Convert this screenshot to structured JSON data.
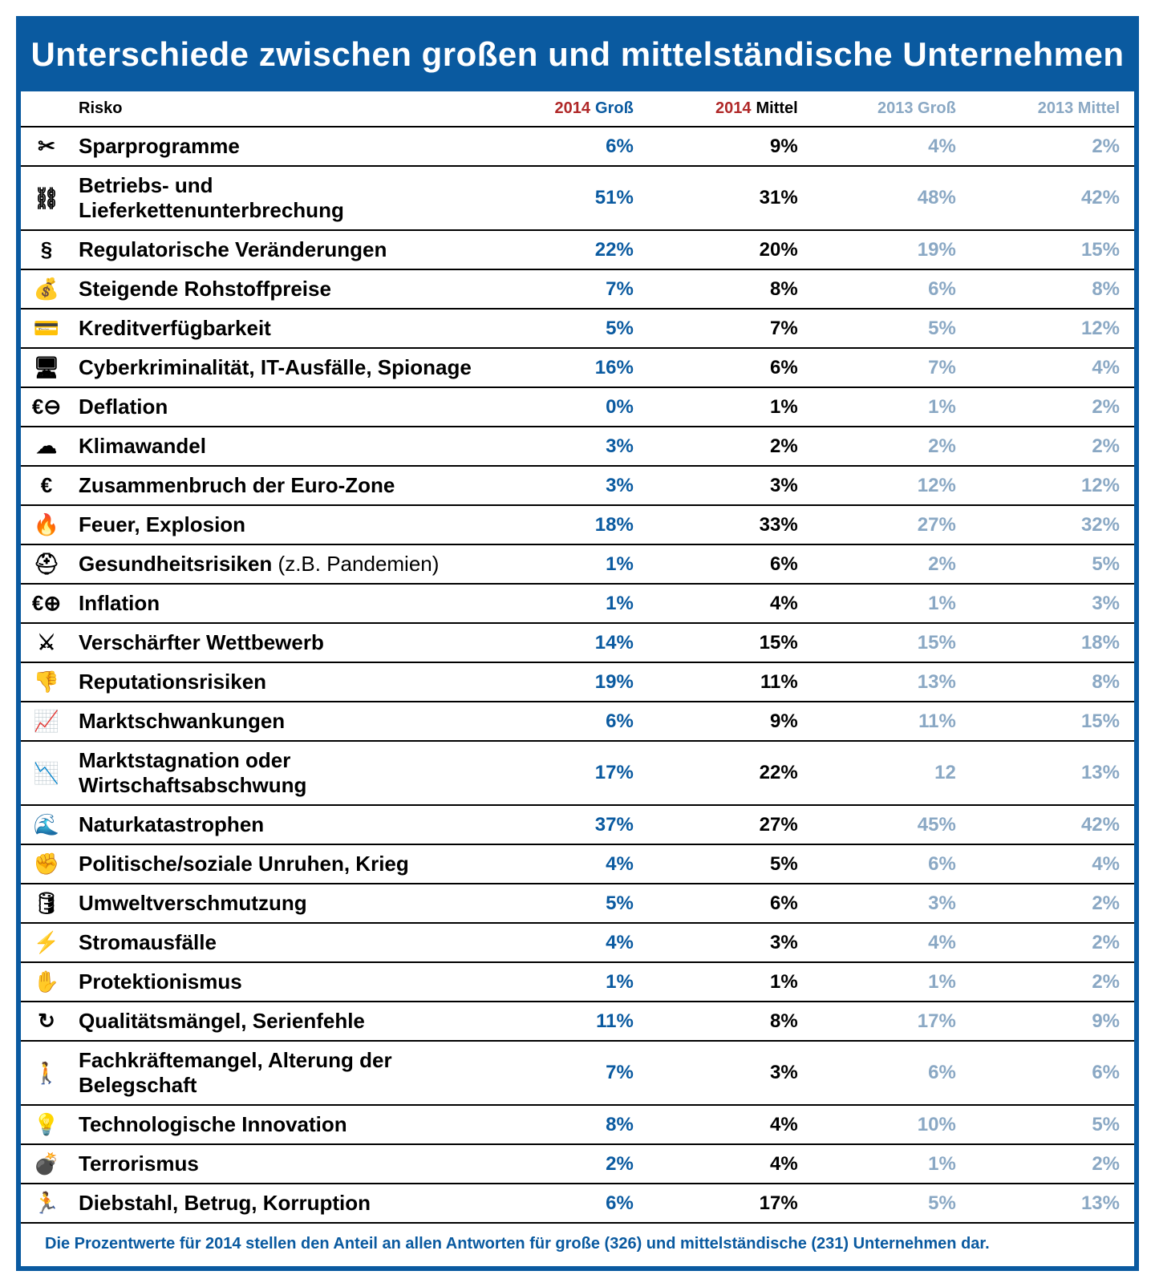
{
  "title": "Unterschiede zwischen großen und mittelständische Unternehmen",
  "footnote": "Die Prozentwerte für 2014 stellen den Anteil an allen Antworten für große (326) und mittelständische (231) Unternehmen dar.",
  "headers": {
    "risk": "Risko",
    "y2014g_year": "2014",
    "y2014g_label": "Groß",
    "y2014m_year": "2014",
    "y2014m_label": "Mittel",
    "y2013g": "2013 Groß",
    "y2013m": "2013 Mittel"
  },
  "colors": {
    "brand_blue": "#0a5aa0",
    "year_red": "#b02828",
    "faded_blue": "#8aa8c4",
    "black": "#000000",
    "white": "#ffffff"
  },
  "typography": {
    "title_fontsize": 42,
    "header_fontsize": 20,
    "cell_fontsize": 24,
    "risk_fontsize": 26,
    "footnote_fontsize": 20,
    "font_family": "Segoe UI, Arial, sans-serif"
  },
  "table": {
    "type": "table",
    "col_widths": {
      "icon": 64,
      "risk": 520
    },
    "border_color": "#000000",
    "border_width": 2,
    "rows": [
      {
        "icon": "✂",
        "icon_name": "scissors-icon",
        "risk": "Sparprogramme",
        "g2014": "6%",
        "m2014": "9%",
        "g2013": "4%",
        "m2013": "2%"
      },
      {
        "icon": "⛓",
        "icon_name": "chain-icon",
        "risk": "Betriebs- und Lieferkettenunterbrechung",
        "g2014": "51%",
        "m2014": "31%",
        "g2013": "48%",
        "m2013": "42%"
      },
      {
        "icon": "§",
        "icon_name": "paragraph-icon",
        "risk": "Regulatorische Veränderungen",
        "g2014": "22%",
        "m2014": "20%",
        "g2013": "19%",
        "m2013": "15%"
      },
      {
        "icon": "💰",
        "icon_name": "money-up-icon",
        "risk": "Steigende Rohstoffpreise",
        "g2014": "7%",
        "m2014": "8%",
        "g2013": "6%",
        "m2013": "8%"
      },
      {
        "icon": "💳",
        "icon_name": "credit-icon",
        "risk": "Kreditverfügbarkeit",
        "g2014": "5%",
        "m2014": "7%",
        "g2013": "5%",
        "m2013": "12%"
      },
      {
        "icon": "🖥",
        "icon_name": "computer-icon",
        "risk": "Cyberkriminalität, IT-Ausfälle, Spionage",
        "g2014": "16%",
        "m2014": "6%",
        "g2013": "7%",
        "m2013": "4%"
      },
      {
        "icon": "€⊖",
        "icon_name": "euro-down-icon",
        "risk": "Deflation",
        "g2014": "0%",
        "m2014": "1%",
        "g2013": "1%",
        "m2013": "2%"
      },
      {
        "icon": "☁",
        "icon_name": "climate-icon",
        "risk": "Klimawandel",
        "g2014": "3%",
        "m2014": "2%",
        "g2013": "2%",
        "m2013": "2%"
      },
      {
        "icon": "€",
        "icon_name": "euro-broken-icon",
        "risk": "Zusammenbruch der Euro-Zone",
        "g2014": "3%",
        "m2014": "3%",
        "g2013": "12%",
        "m2013": "12%"
      },
      {
        "icon": "🔥",
        "icon_name": "fire-icon",
        "risk": "Feuer, Explosion",
        "g2014": "18%",
        "m2014": "33%",
        "g2013": "27%",
        "m2013": "32%"
      },
      {
        "icon": "⛑",
        "icon_name": "health-icon",
        "risk": "Gesundheitsrisiken",
        "risk_sub": "(z.B. Pandemien)",
        "g2014": "1%",
        "m2014": "6%",
        "g2013": "2%",
        "m2013": "5%"
      },
      {
        "icon": "€⊕",
        "icon_name": "euro-up-icon",
        "risk": "Inflation",
        "g2014": "1%",
        "m2014": "4%",
        "g2013": "1%",
        "m2013": "3%"
      },
      {
        "icon": "⚔",
        "icon_name": "competition-icon",
        "risk": "Verschärfter Wettbewerb",
        "g2014": "14%",
        "m2014": "15%",
        "g2013": "15%",
        "m2013": "18%"
      },
      {
        "icon": "👎",
        "icon_name": "thumbs-down-icon",
        "risk": "Reputationsrisiken",
        "g2014": "19%",
        "m2014": "11%",
        "g2013": "13%",
        "m2013": "8%"
      },
      {
        "icon": "📈",
        "icon_name": "fluctuation-icon",
        "risk": "Marktschwankungen",
        "g2014": "6%",
        "m2014": "9%",
        "g2013": "11%",
        "m2013": "15%"
      },
      {
        "icon": "📉",
        "icon_name": "stagnation-icon",
        "risk": "Marktstagnation oder Wirtschaftsabschwung",
        "g2014": "17%",
        "m2014": "22%",
        "g2013": "12",
        "m2013": "13%"
      },
      {
        "icon": "🌊",
        "icon_name": "disaster-icon",
        "risk": "Naturkatastrophen",
        "g2014": "37%",
        "m2014": "27%",
        "g2013": "45%",
        "m2013": "42%"
      },
      {
        "icon": "✊",
        "icon_name": "unrest-icon",
        "risk": "Politische/soziale Unruhen, Krieg",
        "g2014": "4%",
        "m2014": "5%",
        "g2013": "6%",
        "m2013": "4%"
      },
      {
        "icon": "🛢",
        "icon_name": "pollution-icon",
        "risk": "Umweltverschmutzung",
        "g2014": "5%",
        "m2014": "6%",
        "g2013": "3%",
        "m2013": "2%"
      },
      {
        "icon": "⚡",
        "icon_name": "power-icon",
        "risk": "Stromausfälle",
        "g2014": "4%",
        "m2014": "3%",
        "g2013": "4%",
        "m2013": "2%"
      },
      {
        "icon": "✋",
        "icon_name": "hand-icon",
        "risk": "Protektionismus",
        "g2014": "1%",
        "m2014": "1%",
        "g2013": "1%",
        "m2013": "2%"
      },
      {
        "icon": "↻",
        "icon_name": "recall-icon",
        "risk": "Qualitätsmängel, Serienfehle",
        "g2014": "11%",
        "m2014": "8%",
        "g2013": "17%",
        "m2013": "9%"
      },
      {
        "icon": "🚶",
        "icon_name": "worker-icon",
        "risk": "Fachkräftemangel, Alterung der Belegschaft",
        "g2014": "7%",
        "m2014": "3%",
        "g2013": "6%",
        "m2013": "6%"
      },
      {
        "icon": "💡",
        "icon_name": "lightbulb-icon",
        "risk": "Technologische Innovation",
        "g2014": "8%",
        "m2014": "4%",
        "g2013": "10%",
        "m2013": "5%"
      },
      {
        "icon": "💣",
        "icon_name": "bomb-icon",
        "risk": "Terrorismus",
        "g2014": "2%",
        "m2014": "4%",
        "g2013": "1%",
        "m2013": "2%"
      },
      {
        "icon": "🏃",
        "icon_name": "thief-icon",
        "risk": "Diebstahl, Betrug, Korruption",
        "g2014": "6%",
        "m2014": "17%",
        "g2013": "5%",
        "m2013": "13%"
      }
    ]
  }
}
